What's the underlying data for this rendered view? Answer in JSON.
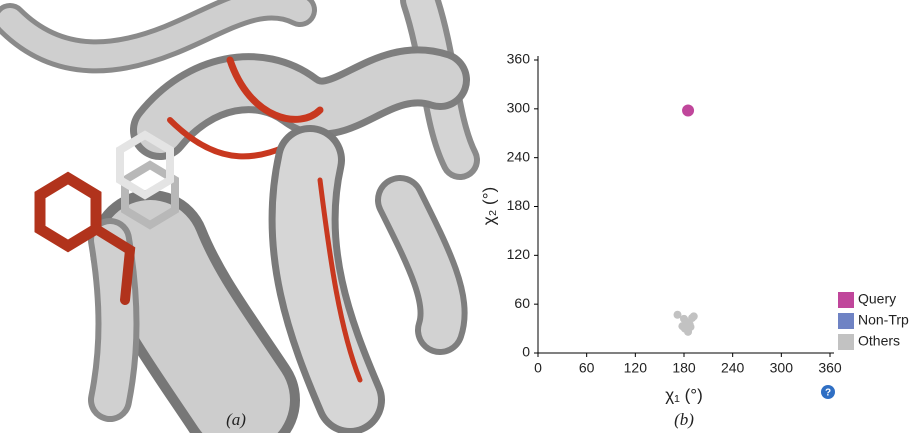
{
  "captions": [
    "(a)",
    "(b)"
  ],
  "chart_data": {
    "type": "scatter",
    "xlabel": "χ₁ (°)",
    "ylabel": "χ₂ (°)",
    "xlim": [
      0,
      360
    ],
    "ylim": [
      0,
      360
    ],
    "xticks": [
      0,
      60,
      120,
      180,
      240,
      300,
      360
    ],
    "yticks": [
      0,
      60,
      120,
      180,
      240,
      300,
      360
    ],
    "grid": false,
    "legend": "lower right",
    "series": [
      {
        "name": "Query",
        "color": "#c0469b",
        "x": [
          185
        ],
        "values": [
          298
        ]
      },
      {
        "name": "Non-Trp",
        "color": "#6f83c4",
        "x": [],
        "values": []
      },
      {
        "name": "Others",
        "color": "#c2c2c2",
        "x": [
          172,
          180,
          183,
          187,
          190,
          192,
          181,
          185,
          178,
          188
        ],
        "values": [
          47,
          42,
          38,
          35,
          43,
          45,
          30,
          26,
          33,
          32
        ]
      }
    ]
  }
}
